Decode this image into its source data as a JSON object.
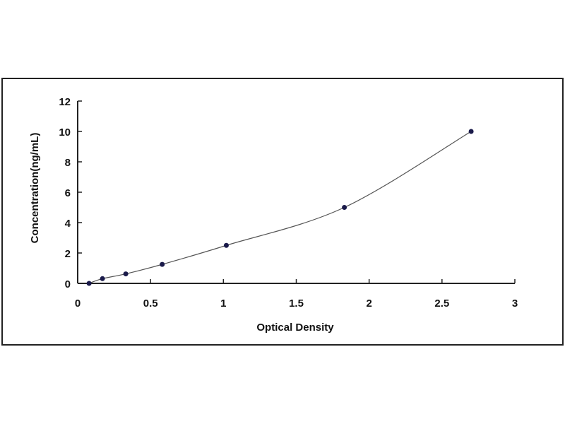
{
  "chart_data": {
    "type": "scatter",
    "title": "",
    "xlabel": "Optical Density",
    "ylabel": "Concentration(ng/mL)",
    "xlim": [
      0,
      3
    ],
    "ylim": [
      0,
      12
    ],
    "xticks": [
      "0",
      "0.5",
      "1",
      "1.5",
      "2",
      "2.5",
      "3"
    ],
    "yticks": [
      "0",
      "2",
      "4",
      "6",
      "8",
      "10",
      "12"
    ],
    "grid": false,
    "legend": "none",
    "trendline": "smooth curve",
    "series": [
      {
        "x": [
          0.078,
          0.17,
          0.33,
          0.58,
          1.02,
          1.83,
          2.7
        ],
        "y": [
          0,
          0.312,
          0.625,
          1.25,
          2.5,
          5,
          10
        ]
      }
    ],
    "colors": {
      "marker": "#1a1a4a",
      "curve": "#555555",
      "axis": "#222222"
    }
  }
}
